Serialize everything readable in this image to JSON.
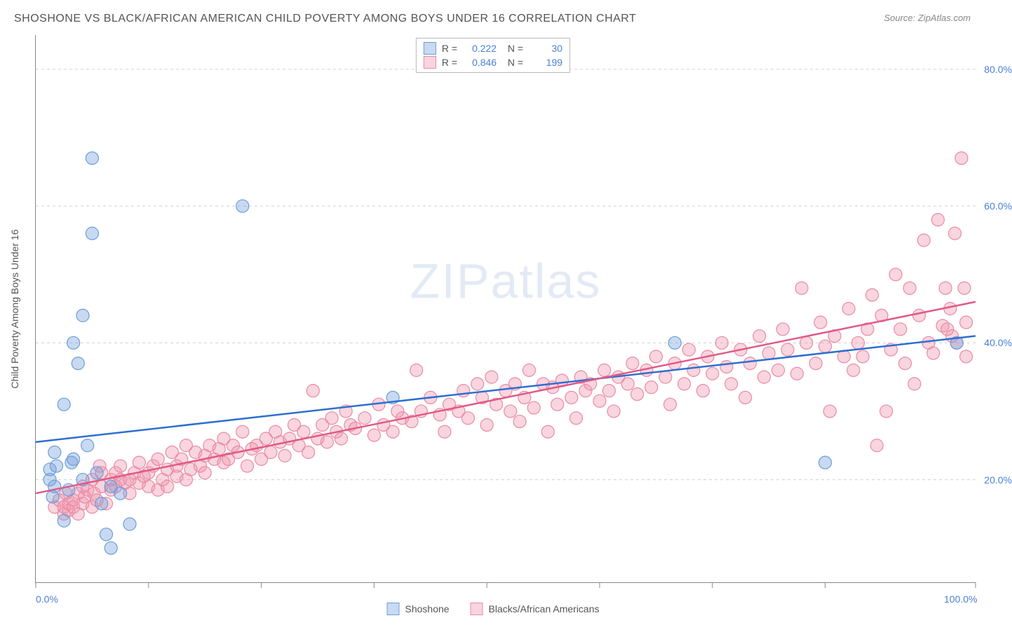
{
  "title": "SHOSHONE VS BLACK/AFRICAN AMERICAN CHILD POVERTY AMONG BOYS UNDER 16 CORRELATION CHART",
  "source": "Source: ZipAtlas.com",
  "watermark": "ZIPatlas",
  "ylabel": "Child Poverty Among Boys Under 16",
  "chart": {
    "type": "scatter",
    "xlim": [
      0,
      100
    ],
    "ylim": [
      5,
      85
    ],
    "x_ticks": [
      0,
      12,
      24,
      36,
      48,
      60,
      72,
      84,
      100
    ],
    "x_tick_labels_show": [
      0,
      100
    ],
    "x_tick_label_fmt": [
      "0.0%",
      "100.0%"
    ],
    "y_gridlines": [
      20,
      40,
      60,
      80
    ],
    "y_labels": [
      "20.0%",
      "40.0%",
      "60.0%",
      "80.0%"
    ],
    "grid_color": "#d0d0d0",
    "background_color": "#ffffff",
    "watermark_color": "rgba(100,140,200,0.18)",
    "series": [
      {
        "name": "Shoshone",
        "color_fill": "rgba(120,160,220,0.4)",
        "color_stroke": "#6a9ed8",
        "trend_color": "#2e6fd0",
        "trend_start_y": 25.5,
        "trend_end_y": 41.0,
        "points": [
          [
            1.5,
            20
          ],
          [
            1.5,
            21.5
          ],
          [
            1.8,
            17.5
          ],
          [
            2,
            19
          ],
          [
            2,
            24
          ],
          [
            2.2,
            22
          ],
          [
            3,
            31
          ],
          [
            3,
            14
          ],
          [
            3.5,
            18.5
          ],
          [
            3.8,
            22.5
          ],
          [
            4,
            40
          ],
          [
            4,
            23
          ],
          [
            4.5,
            37
          ],
          [
            5,
            20
          ],
          [
            5,
            44
          ],
          [
            5.5,
            25
          ],
          [
            6,
            56
          ],
          [
            6,
            67
          ],
          [
            6.5,
            21
          ],
          [
            7,
            16.5
          ],
          [
            7.5,
            12
          ],
          [
            8,
            10
          ],
          [
            8,
            19
          ],
          [
            9,
            18
          ],
          [
            10,
            13.5
          ],
          [
            22,
            60
          ],
          [
            38,
            32
          ],
          [
            68,
            40
          ],
          [
            84,
            22.5
          ],
          [
            98,
            40
          ]
        ]
      },
      {
        "name": "Blacks/African Americans",
        "color_fill": "rgba(240,150,175,0.4)",
        "color_stroke": "#e88aa5",
        "trend_color": "#e05a88",
        "trend_start_y": 18.0,
        "trend_end_y": 46.0,
        "points": [
          [
            2,
            16
          ],
          [
            2.5,
            17
          ],
          [
            3,
            15
          ],
          [
            3,
            16
          ],
          [
            3.2,
            18
          ],
          [
            3.5,
            15.5
          ],
          [
            3.5,
            16.5
          ],
          [
            4,
            17
          ],
          [
            4,
            16
          ],
          [
            4.5,
            18
          ],
          [
            4.5,
            15
          ],
          [
            5,
            16.5
          ],
          [
            5,
            19
          ],
          [
            5.2,
            17.5
          ],
          [
            5.5,
            18.5
          ],
          [
            6,
            16
          ],
          [
            6,
            20
          ],
          [
            6.2,
            18
          ],
          [
            6.5,
            17
          ],
          [
            6.8,
            22
          ],
          [
            7,
            19
          ],
          [
            7,
            21
          ],
          [
            7.5,
            16.5
          ],
          [
            8,
            20
          ],
          [
            8,
            18.5
          ],
          [
            8.5,
            19
          ],
          [
            8.5,
            21
          ],
          [
            9,
            20
          ],
          [
            9,
            22
          ],
          [
            9.5,
            19.5
          ],
          [
            10,
            20
          ],
          [
            10,
            18
          ],
          [
            10.5,
            21
          ],
          [
            11,
            19.5
          ],
          [
            11,
            22.5
          ],
          [
            11.5,
            20.5
          ],
          [
            12,
            21
          ],
          [
            12,
            19
          ],
          [
            12.5,
            22
          ],
          [
            13,
            18.5
          ],
          [
            13,
            23
          ],
          [
            13.5,
            20
          ],
          [
            14,
            21.5
          ],
          [
            14,
            19
          ],
          [
            14.5,
            24
          ],
          [
            15,
            20.5
          ],
          [
            15,
            22
          ],
          [
            15.5,
            23
          ],
          [
            16,
            20
          ],
          [
            16,
            25
          ],
          [
            16.5,
            21.5
          ],
          [
            17,
            24
          ],
          [
            17.5,
            22
          ],
          [
            18,
            23.5
          ],
          [
            18,
            21
          ],
          [
            18.5,
            25
          ],
          [
            19,
            23
          ],
          [
            19.5,
            24.5
          ],
          [
            20,
            22.5
          ],
          [
            20,
            26
          ],
          [
            20.5,
            23
          ],
          [
            21,
            25
          ],
          [
            21.5,
            24
          ],
          [
            22,
            27
          ],
          [
            22.5,
            22
          ],
          [
            23,
            24.5
          ],
          [
            23.5,
            25
          ],
          [
            24,
            23
          ],
          [
            24.5,
            26
          ],
          [
            25,
            24
          ],
          [
            25.5,
            27
          ],
          [
            26,
            25.5
          ],
          [
            26.5,
            23.5
          ],
          [
            27,
            26
          ],
          [
            27.5,
            28
          ],
          [
            28,
            25
          ],
          [
            28.5,
            27
          ],
          [
            29,
            24
          ],
          [
            29.5,
            33
          ],
          [
            30,
            26
          ],
          [
            30.5,
            28
          ],
          [
            31,
            25.5
          ],
          [
            31.5,
            29
          ],
          [
            32,
            27
          ],
          [
            32.5,
            26
          ],
          [
            33,
            30
          ],
          [
            33.5,
            28
          ],
          [
            34,
            27.5
          ],
          [
            35,
            29
          ],
          [
            36,
            26.5
          ],
          [
            36.5,
            31
          ],
          [
            37,
            28
          ],
          [
            38,
            27
          ],
          [
            38.5,
            30
          ],
          [
            39,
            29
          ],
          [
            40,
            28.5
          ],
          [
            40.5,
            36
          ],
          [
            41,
            30
          ],
          [
            42,
            32
          ],
          [
            43,
            29.5
          ],
          [
            43.5,
            27
          ],
          [
            44,
            31
          ],
          [
            45,
            30
          ],
          [
            45.5,
            33
          ],
          [
            46,
            29
          ],
          [
            47,
            34
          ],
          [
            47.5,
            32
          ],
          [
            48,
            28
          ],
          [
            48.5,
            35
          ],
          [
            49,
            31
          ],
          [
            50,
            33
          ],
          [
            50.5,
            30
          ],
          [
            51,
            34
          ],
          [
            51.5,
            28.5
          ],
          [
            52,
            32
          ],
          [
            52.5,
            36
          ],
          [
            53,
            30.5
          ],
          [
            54,
            34
          ],
          [
            54.5,
            27
          ],
          [
            55,
            33.5
          ],
          [
            55.5,
            31
          ],
          [
            56,
            34.5
          ],
          [
            57,
            32
          ],
          [
            57.5,
            29
          ],
          [
            58,
            35
          ],
          [
            58.5,
            33
          ],
          [
            59,
            34
          ],
          [
            60,
            31.5
          ],
          [
            60.5,
            36
          ],
          [
            61,
            33
          ],
          [
            61.5,
            30
          ],
          [
            62,
            35
          ],
          [
            63,
            34
          ],
          [
            63.5,
            37
          ],
          [
            64,
            32.5
          ],
          [
            65,
            36
          ],
          [
            65.5,
            33.5
          ],
          [
            66,
            38
          ],
          [
            67,
            35
          ],
          [
            67.5,
            31
          ],
          [
            68,
            37
          ],
          [
            69,
            34
          ],
          [
            69.5,
            39
          ],
          [
            70,
            36
          ],
          [
            71,
            33
          ],
          [
            71.5,
            38
          ],
          [
            72,
            35.5
          ],
          [
            73,
            40
          ],
          [
            73.5,
            36.5
          ],
          [
            74,
            34
          ],
          [
            75,
            39
          ],
          [
            75.5,
            32
          ],
          [
            76,
            37
          ],
          [
            77,
            41
          ],
          [
            77.5,
            35
          ],
          [
            78,
            38.5
          ],
          [
            79,
            36
          ],
          [
            79.5,
            42
          ],
          [
            80,
            39
          ],
          [
            81,
            35.5
          ],
          [
            81.5,
            48
          ],
          [
            82,
            40
          ],
          [
            83,
            37
          ],
          [
            83.5,
            43
          ],
          [
            84,
            39.5
          ],
          [
            84.5,
            30
          ],
          [
            85,
            41
          ],
          [
            86,
            38
          ],
          [
            86.5,
            45
          ],
          [
            87,
            36
          ],
          [
            87.5,
            40
          ],
          [
            88,
            38
          ],
          [
            88.5,
            42
          ],
          [
            89,
            47
          ],
          [
            89.5,
            25
          ],
          [
            90,
            44
          ],
          [
            90.5,
            30
          ],
          [
            91,
            39
          ],
          [
            91.5,
            50
          ],
          [
            92,
            42
          ],
          [
            92.5,
            37
          ],
          [
            93,
            48
          ],
          [
            93.5,
            34
          ],
          [
            94,
            44
          ],
          [
            94.5,
            55
          ],
          [
            95,
            40
          ],
          [
            95.5,
            38.5
          ],
          [
            96,
            58
          ],
          [
            96.5,
            42.5
          ],
          [
            96.8,
            48
          ],
          [
            97,
            42
          ],
          [
            97.3,
            45
          ],
          [
            97.5,
            41
          ],
          [
            97.8,
            56
          ],
          [
            98,
            40
          ],
          [
            98.5,
            67
          ],
          [
            98.8,
            48
          ],
          [
            99,
            43
          ],
          [
            99,
            38
          ]
        ]
      }
    ],
    "top_legend": [
      {
        "swatch_fill": "rgba(120,160,220,0.4)",
        "swatch_stroke": "#6a9ed8",
        "r": "0.222",
        "n": "30"
      },
      {
        "swatch_fill": "rgba(240,150,175,0.4)",
        "swatch_stroke": "#e88aa5",
        "r": "0.846",
        "n": "199"
      }
    ],
    "bottom_legend": [
      {
        "label": "Shoshone",
        "swatch_fill": "rgba(120,160,220,0.4)",
        "swatch_stroke": "#6a9ed8"
      },
      {
        "label": "Blacks/African Americans",
        "swatch_fill": "rgba(240,150,175,0.4)",
        "swatch_stroke": "#e88aa5"
      }
    ]
  }
}
